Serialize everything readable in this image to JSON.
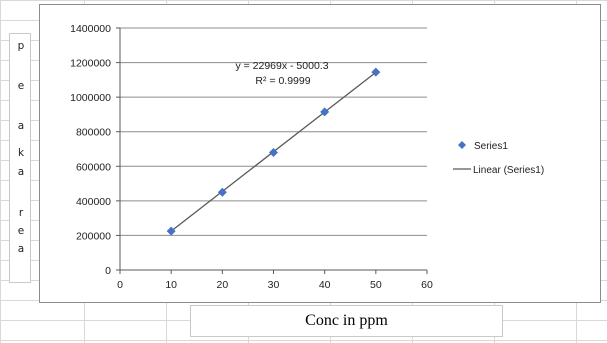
{
  "chart_data": {
    "type": "scatter",
    "x": [
      10,
      20,
      30,
      40,
      50
    ],
    "series": [
      {
        "name": "Series1",
        "values": [
          225000,
          450000,
          680000,
          915000,
          1145000
        ],
        "color": "#4472c4"
      }
    ],
    "trendline": {
      "name": "Linear (Series1)",
      "slope": 22969,
      "intercept": -5000.3,
      "equation": "y = 22969x - 5000.3",
      "r_squared": "R² = 0.9999",
      "color": "#595959"
    },
    "xlabel": "Conc in ppm",
    "ylabel": "peak area",
    "ylabel_chars": [
      "p",
      "e",
      "a",
      "k",
      "a",
      "r",
      "e",
      "a"
    ],
    "xlim": [
      0,
      60
    ],
    "ylim": [
      0,
      1400000
    ],
    "x_ticks": [
      0,
      10,
      20,
      30,
      40,
      50,
      60
    ],
    "y_ticks": [
      0,
      200000,
      400000,
      600000,
      800000,
      1000000,
      1200000,
      1400000
    ],
    "grid": true,
    "legend_position": "right",
    "legend": [
      {
        "label": "Series1",
        "symbol": "diamond-marker"
      },
      {
        "label": "Linear (Series1)",
        "symbol": "line"
      }
    ]
  }
}
